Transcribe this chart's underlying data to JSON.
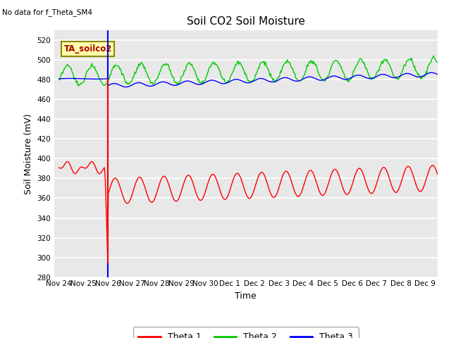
{
  "title": "Soil CO2 Soil Moisture",
  "xlabel": "Time",
  "ylabel": "Soil Moisture (mV)",
  "ylim": [
    280,
    530
  ],
  "yticks": [
    280,
    300,
    320,
    340,
    360,
    380,
    400,
    420,
    440,
    460,
    480,
    500,
    520
  ],
  "background_color": "#e8e8e8",
  "fig_background": "#ffffff",
  "grid_color": "#ffffff",
  "annotation_text": "No data for f_Theta_SM4",
  "box_text": "TA_soilco2",
  "legend_labels": [
    "Theta 1",
    "Theta 2",
    "Theta 3"
  ],
  "line_colors": [
    "#ff0000",
    "#00cc00",
    "#0000ff"
  ],
  "vline_x": 2.0,
  "xtick_labels": [
    "Nov 24",
    "Nov 25",
    "Nov 26",
    "Nov 27",
    "Nov 28",
    "Nov 29",
    "Nov 30",
    "Dec 1",
    "Dec 2",
    "Dec 3",
    "Dec 4",
    "Dec 5",
    "Dec 6",
    "Dec 7",
    "Dec 8",
    "Dec 9"
  ],
  "xtick_positions": [
    0,
    1,
    2,
    3,
    4,
    5,
    6,
    7,
    8,
    9,
    10,
    11,
    12,
    13,
    14,
    15
  ]
}
